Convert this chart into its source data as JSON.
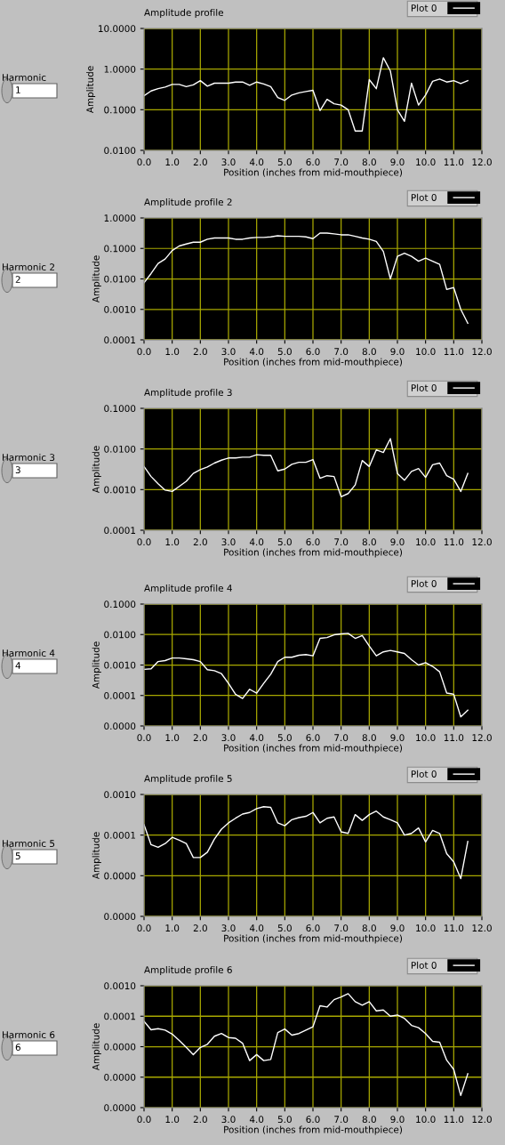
{
  "chart_data": [
    {
      "type": "line",
      "title": "Amplitude profile",
      "xlabel": "Position (inches from mid-mouthpiece)",
      "ylabel": "Amplitude",
      "annotations": [
        "Harmonic",
        "1"
      ],
      "log": "y",
      "grid": true,
      "legend": "top right",
      "xlim": [
        0,
        12
      ],
      "xticks": [
        {
          "value": 0,
          "label": "0.0"
        },
        {
          "value": 1,
          "label": "1.0"
        },
        {
          "value": 2,
          "label": "2.0"
        },
        {
          "value": 3,
          "label": "3.0"
        },
        {
          "value": 4,
          "label": "4.0"
        },
        {
          "value": 5,
          "label": "5.0"
        },
        {
          "value": 6,
          "label": "6.0"
        },
        {
          "value": 7,
          "label": "7.0"
        },
        {
          "value": 8,
          "label": "8.0"
        },
        {
          "value": 9,
          "label": "9.0"
        },
        {
          "value": 10,
          "label": "10.0"
        },
        {
          "value": 11,
          "label": "11.0"
        },
        {
          "value": 12,
          "label": "12.0"
        }
      ],
      "ylim": [
        0.01,
        10
      ],
      "yticks": [
        {
          "value": 0.01,
          "label": "0.0100"
        },
        {
          "value": 0.1,
          "label": "0.1000"
        },
        {
          "value": 1,
          "label": "1.0000"
        },
        {
          "value": 10,
          "label": "10.0000"
        }
      ],
      "x": [
        0,
        0.25,
        0.5,
        0.75,
        1,
        1.25,
        1.5,
        1.75,
        2,
        2.25,
        2.5,
        2.75,
        3,
        3.25,
        3.5,
        3.75,
        4,
        4.25,
        4.5,
        4.75,
        5,
        5.25,
        5.5,
        5.75,
        6,
        6.25,
        6.5,
        6.75,
        7,
        7.25,
        7.5,
        7.75,
        8,
        8.25,
        8.5,
        8.75,
        9,
        9.25,
        9.5,
        9.75,
        10,
        10.25,
        10.5,
        10.75,
        11,
        11.25,
        11.5
      ],
      "series": [
        {
          "name": "Plot 0",
          "color": "#ffffff",
          "values": [
            0.22,
            0.29,
            0.33,
            0.36,
            0.42,
            0.42,
            0.37,
            0.41,
            0.52,
            0.38,
            0.45,
            0.45,
            0.45,
            0.48,
            0.48,
            0.4,
            0.48,
            0.43,
            0.37,
            0.2,
            0.17,
            0.23,
            0.26,
            0.28,
            0.3,
            0.095,
            0.18,
            0.14,
            0.13,
            0.1,
            0.03,
            0.03,
            0.55,
            0.33,
            1.9,
            0.9,
            0.1,
            0.052,
            0.45,
            0.13,
            0.23,
            0.5,
            0.57,
            0.48,
            0.52,
            0.44,
            0.52
          ]
        }
      ]
    },
    {
      "type": "line",
      "title": "Amplitude profile 2",
      "xlabel": "Position (inches from mid-mouthpiece)",
      "ylabel": "Amplitude",
      "annotations": [
        "Harmonic 2",
        "2"
      ],
      "log": "y",
      "grid": true,
      "legend": "top right",
      "xlim": [
        0,
        12
      ],
      "xticks": [
        {
          "value": 0,
          "label": "0.0"
        },
        {
          "value": 1,
          "label": "1.0"
        },
        {
          "value": 2,
          "label": "2.0"
        },
        {
          "value": 3,
          "label": "3.0"
        },
        {
          "value": 4,
          "label": "4.0"
        },
        {
          "value": 5,
          "label": "5.0"
        },
        {
          "value": 6,
          "label": "6.0"
        },
        {
          "value": 7,
          "label": "7.0"
        },
        {
          "value": 8,
          "label": "8.0"
        },
        {
          "value": 9,
          "label": "9.0"
        },
        {
          "value": 10,
          "label": "10.0"
        },
        {
          "value": 11,
          "label": "11.0"
        },
        {
          "value": 12,
          "label": "12.0"
        }
      ],
      "ylim": [
        0.0001,
        1
      ],
      "yticks": [
        {
          "value": 0.0001,
          "label": "0.0001"
        },
        {
          "value": 0.001,
          "label": "0.0010"
        },
        {
          "value": 0.01,
          "label": "0.0100"
        },
        {
          "value": 0.1,
          "label": "0.1000"
        },
        {
          "value": 1,
          "label": "1.0000"
        }
      ],
      "x": [
        0,
        0.25,
        0.5,
        0.75,
        1,
        1.25,
        1.5,
        1.75,
        2,
        2.25,
        2.5,
        2.75,
        3,
        3.25,
        3.5,
        3.75,
        4,
        4.25,
        4.5,
        4.75,
        5,
        5.25,
        5.5,
        5.75,
        6,
        6.25,
        6.5,
        6.75,
        7,
        7.25,
        7.5,
        7.75,
        8,
        8.25,
        8.5,
        8.75,
        9,
        9.25,
        9.5,
        9.75,
        10,
        10.25,
        10.5,
        10.75,
        11,
        11.25,
        11.5
      ],
      "series": [
        {
          "name": "Plot 0",
          "color": "#ffffff",
          "values": [
            0.0075,
            0.015,
            0.032,
            0.045,
            0.085,
            0.12,
            0.14,
            0.16,
            0.16,
            0.2,
            0.22,
            0.22,
            0.22,
            0.2,
            0.2,
            0.22,
            0.23,
            0.23,
            0.24,
            0.26,
            0.25,
            0.25,
            0.25,
            0.24,
            0.21,
            0.32,
            0.32,
            0.3,
            0.28,
            0.28,
            0.25,
            0.22,
            0.2,
            0.17,
            0.08,
            0.01,
            0.055,
            0.07,
            0.055,
            0.038,
            0.048,
            0.038,
            0.03,
            0.0045,
            0.0052,
            0.001,
            0.00035
          ]
        }
      ]
    },
    {
      "type": "line",
      "title": "Amplitude profile 3",
      "xlabel": "Position (inches from mid-mouthpiece)",
      "ylabel": "Amplitude",
      "annotations": [
        "Harmonic 3",
        "3"
      ],
      "log": "y",
      "grid": true,
      "legend": "top right",
      "xlim": [
        0,
        12
      ],
      "xticks": [
        {
          "value": 0,
          "label": "0.0"
        },
        {
          "value": 1,
          "label": "1.0"
        },
        {
          "value": 2,
          "label": "2.0"
        },
        {
          "value": 3,
          "label": "3.0"
        },
        {
          "value": 4,
          "label": "4.0"
        },
        {
          "value": 5,
          "label": "5.0"
        },
        {
          "value": 6,
          "label": "6.0"
        },
        {
          "value": 7,
          "label": "7.0"
        },
        {
          "value": 8,
          "label": "8.0"
        },
        {
          "value": 9,
          "label": "9.0"
        },
        {
          "value": 10,
          "label": "10.0"
        },
        {
          "value": 11,
          "label": "11.0"
        },
        {
          "value": 12,
          "label": "12.0"
        }
      ],
      "ylim": [
        0.0001,
        0.1
      ],
      "yticks": [
        {
          "value": 0.0001,
          "label": "0.0001"
        },
        {
          "value": 0.001,
          "label": "0.0010"
        },
        {
          "value": 0.01,
          "label": "0.0100"
        },
        {
          "value": 0.1,
          "label": "0.1000"
        }
      ],
      "x": [
        0,
        0.25,
        0.5,
        0.75,
        1,
        1.25,
        1.5,
        1.75,
        2,
        2.25,
        2.5,
        2.75,
        3,
        3.25,
        3.5,
        3.75,
        4,
        4.25,
        4.5,
        4.75,
        5,
        5.25,
        5.5,
        5.75,
        6,
        6.25,
        6.5,
        6.75,
        7,
        7.25,
        7.5,
        7.75,
        8,
        8.25,
        8.5,
        8.75,
        9,
        9.25,
        9.5,
        9.75,
        10,
        10.25,
        10.5,
        10.75,
        11,
        11.25,
        11.5
      ],
      "series": [
        {
          "name": "Plot 0",
          "color": "#ffffff",
          "values": [
            0.0037,
            0.0021,
            0.0014,
            0.00097,
            0.0009,
            0.0012,
            0.0016,
            0.0025,
            0.0031,
            0.0036,
            0.0045,
            0.0053,
            0.006,
            0.006,
            0.0063,
            0.0063,
            0.0072,
            0.007,
            0.007,
            0.0029,
            0.0032,
            0.0042,
            0.0047,
            0.0047,
            0.0055,
            0.0019,
            0.0022,
            0.0021,
            0.00067,
            0.0008,
            0.0013,
            0.0052,
            0.0037,
            0.0095,
            0.0082,
            0.018,
            0.0025,
            0.0017,
            0.0028,
            0.0033,
            0.002,
            0.0041,
            0.0045,
            0.0022,
            0.0018,
            0.0009,
            0.0025
          ]
        }
      ]
    },
    {
      "type": "line",
      "title": "Amplitude profile 4",
      "xlabel": "Position (inches from mid-mouthpiece)",
      "ylabel": "Amplitude",
      "annotations": [
        "Harmonic 4",
        "4"
      ],
      "log": "y",
      "grid": true,
      "legend": "top right",
      "xlim": [
        0,
        12
      ],
      "xticks": [
        {
          "value": 0,
          "label": "0.0"
        },
        {
          "value": 1,
          "label": "1.0"
        },
        {
          "value": 2,
          "label": "2.0"
        },
        {
          "value": 3,
          "label": "3.0"
        },
        {
          "value": 4,
          "label": "4.0"
        },
        {
          "value": 5,
          "label": "5.0"
        },
        {
          "value": 6,
          "label": "6.0"
        },
        {
          "value": 7,
          "label": "7.0"
        },
        {
          "value": 8,
          "label": "8.0"
        },
        {
          "value": 9,
          "label": "9.0"
        },
        {
          "value": 10,
          "label": "10.0"
        },
        {
          "value": 11,
          "label": "11.0"
        },
        {
          "value": 12,
          "label": "12.0"
        }
      ],
      "ylim": [
        1e-05,
        0.1
      ],
      "yticks": [
        {
          "value": 1e-05,
          "label": "0.0000"
        },
        {
          "value": 0.0001,
          "label": "0.0001"
        },
        {
          "value": 0.001,
          "label": "0.0010"
        },
        {
          "value": 0.01,
          "label": "0.0100"
        },
        {
          "value": 0.1,
          "label": "0.1000"
        }
      ],
      "x": [
        0,
        0.25,
        0.5,
        0.75,
        1,
        1.25,
        1.5,
        1.75,
        2,
        2.25,
        2.5,
        2.75,
        3,
        3.25,
        3.5,
        3.75,
        4,
        4.25,
        4.5,
        4.75,
        5,
        5.25,
        5.5,
        5.75,
        6,
        6.25,
        6.5,
        6.75,
        7,
        7.25,
        7.5,
        7.75,
        8,
        8.25,
        8.5,
        8.75,
        9,
        9.25,
        9.5,
        9.75,
        10,
        10.25,
        10.5,
        10.75,
        11,
        11.25,
        11.5
      ],
      "series": [
        {
          "name": "Plot 0",
          "color": "#ffffff",
          "values": [
            0.00072,
            0.00075,
            0.0013,
            0.0014,
            0.0017,
            0.0017,
            0.0016,
            0.0015,
            0.0013,
            0.0007,
            0.00065,
            0.00052,
            0.00025,
            0.00011,
            8e-05,
            0.00016,
            0.00012,
            0.00025,
            0.0005,
            0.0013,
            0.0018,
            0.0018,
            0.0021,
            0.0022,
            0.002,
            0.0075,
            0.008,
            0.0098,
            0.0105,
            0.011,
            0.0075,
            0.0093,
            0.0042,
            0.002,
            0.0027,
            0.003,
            0.0027,
            0.0024,
            0.0015,
            0.001,
            0.0012,
            0.0009,
            0.0006,
            0.00012,
            0.00011,
            2e-05,
            3.3e-05
          ]
        }
      ]
    },
    {
      "type": "line",
      "title": "Amplitude profile 5",
      "xlabel": "Position (inches from mid-mouthpiece)",
      "ylabel": "Amplitude",
      "annotations": [
        "Harmonic 5",
        "5"
      ],
      "log": "y",
      "grid": true,
      "legend": "top right",
      "xlim": [
        0,
        12
      ],
      "xticks": [
        {
          "value": 0,
          "label": "0.0"
        },
        {
          "value": 1,
          "label": "1.0"
        },
        {
          "value": 2,
          "label": "2.0"
        },
        {
          "value": 3,
          "label": "3.0"
        },
        {
          "value": 4,
          "label": "4.0"
        },
        {
          "value": 5,
          "label": "5.0"
        },
        {
          "value": 6,
          "label": "6.0"
        },
        {
          "value": 7,
          "label": "7.0"
        },
        {
          "value": 8,
          "label": "8.0"
        },
        {
          "value": 9,
          "label": "9.0"
        },
        {
          "value": 10,
          "label": "10.0"
        },
        {
          "value": 11,
          "label": "11.0"
        },
        {
          "value": 12,
          "label": "12.0"
        }
      ],
      "ylim": [
        1e-06,
        0.001
      ],
      "yticks": [
        {
          "value": 1e-06,
          "label": "0.0000"
        },
        {
          "value": 1e-05,
          "label": "0.0000"
        },
        {
          "value": 0.0001,
          "label": "0.0001"
        },
        {
          "value": 0.001,
          "label": "0.0010"
        }
      ],
      "x": [
        0,
        0.25,
        0.5,
        0.75,
        1,
        1.25,
        1.5,
        1.75,
        2,
        2.25,
        2.5,
        2.75,
        3,
        3.25,
        3.5,
        3.75,
        4,
        4.25,
        4.5,
        4.75,
        5,
        5.25,
        5.5,
        5.75,
        6,
        6.25,
        6.5,
        6.75,
        7,
        7.25,
        7.5,
        7.75,
        8,
        8.25,
        8.5,
        8.75,
        9,
        9.25,
        9.5,
        9.75,
        10,
        10.25,
        10.5,
        10.75,
        11,
        11.25,
        11.5
      ],
      "series": [
        {
          "name": "Plot 0",
          "color": "#ffffff",
          "values": [
            0.00018,
            5.8e-05,
            5e-05,
            6.2e-05,
            8.8e-05,
            7.5e-05,
            6.2e-05,
            2.8e-05,
            2.8e-05,
            3.8e-05,
            8e-05,
            0.00014,
            0.0002,
            0.00026,
            0.00033,
            0.00036,
            0.00045,
            0.0005,
            0.00048,
            0.0002,
            0.00017,
            0.00024,
            0.00027,
            0.00029,
            0.00036,
            0.0002,
            0.00026,
            0.00028,
            0.00012,
            0.00011,
            0.00032,
            0.00023,
            0.00032,
            0.00039,
            0.00028,
            0.00024,
            0.0002,
            0.0001,
            0.00011,
            0.00015,
            6.8e-05,
            0.00013,
            0.00011,
            3.5e-05,
            2.2e-05,
            8.5e-06,
            7e-05
          ]
        }
      ]
    },
    {
      "type": "line",
      "title": "Amplitude profile 6",
      "xlabel": "Position (inches from mid-mouthpiece)",
      "ylabel": "Amplitude",
      "annotations": [
        "Harmonic 6",
        "6"
      ],
      "log": "y",
      "grid": true,
      "legend": "top right",
      "xlim": [
        0,
        12
      ],
      "xticks": [
        {
          "value": 0,
          "label": "0.0"
        },
        {
          "value": 1,
          "label": "1.0"
        },
        {
          "value": 2,
          "label": "2.0"
        },
        {
          "value": 3,
          "label": "3.0"
        },
        {
          "value": 4,
          "label": "4.0"
        },
        {
          "value": 5,
          "label": "5.0"
        },
        {
          "value": 6,
          "label": "6.0"
        },
        {
          "value": 7,
          "label": "7.0"
        },
        {
          "value": 8,
          "label": "8.0"
        },
        {
          "value": 9,
          "label": "9.0"
        },
        {
          "value": 10,
          "label": "10.0"
        },
        {
          "value": 11,
          "label": "11.0"
        },
        {
          "value": 12,
          "label": "12.0"
        }
      ],
      "ylim": [
        1e-07,
        0.001
      ],
      "yticks": [
        {
          "value": 1e-07,
          "label": "0.0000"
        },
        {
          "value": 1e-06,
          "label": "0.0000"
        },
        {
          "value": 1e-05,
          "label": "0.0000"
        },
        {
          "value": 0.0001,
          "label": "0.0001"
        },
        {
          "value": 0.001,
          "label": "0.0010"
        }
      ],
      "x": [
        0,
        0.25,
        0.5,
        0.75,
        1,
        1.25,
        1.5,
        1.75,
        2,
        2.25,
        2.5,
        2.75,
        3,
        3.25,
        3.5,
        3.75,
        4,
        4.25,
        4.5,
        4.75,
        5,
        5.25,
        5.5,
        5.75,
        6,
        6.25,
        6.5,
        6.75,
        7,
        7.25,
        7.5,
        7.75,
        8,
        8.25,
        8.5,
        8.75,
        9,
        9.25,
        9.5,
        9.75,
        10,
        10.25,
        10.5,
        10.75,
        11,
        11.25,
        11.5
      ],
      "series": [
        {
          "name": "Plot 0",
          "color": "#ffffff",
          "values": [
            6.8e-05,
            3.6e-05,
            3.9e-05,
            3.5e-05,
            2.6e-05,
            1.6e-05,
            9.5e-06,
            5.5e-06,
            9.5e-06,
            1.2e-05,
            2.2e-05,
            2.7e-05,
            2e-05,
            1.9e-05,
            1.3e-05,
            3.5e-06,
            5.5e-06,
            3.5e-06,
            3.8e-06,
            2.9e-05,
            3.8e-05,
            2.4e-05,
            2.7e-05,
            3.5e-05,
            4.5e-05,
            0.00022,
            0.0002,
            0.00035,
            0.00043,
            0.00055,
            0.0003,
            0.00023,
            0.0003,
            0.00015,
            0.00016,
            0.0001,
            0.00011,
            8.5e-05,
            5e-05,
            4.2e-05,
            2.7e-05,
            1.5e-05,
            1.4e-05,
            3.6e-06,
            1.8e-06,
            2.5e-07,
            1.3e-06
          ]
        }
      ]
    }
  ]
}
